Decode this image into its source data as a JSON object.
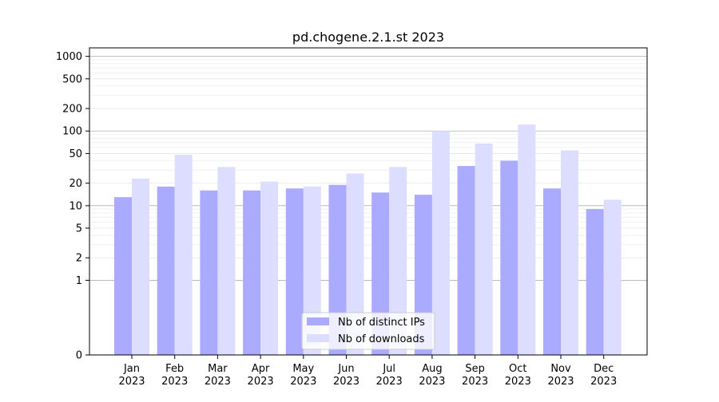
{
  "chart_data": {
    "type": "bar",
    "title": "pd.chogene.2.1.st 2023",
    "xlabel": "",
    "ylabel": "",
    "yscale": "symlog",
    "ylim": [
      0,
      1300
    ],
    "y_ticks": [
      0,
      1,
      2,
      5,
      10,
      20,
      50,
      100,
      200,
      500,
      1000
    ],
    "grid": true,
    "legend_position": "lower-center",
    "categories": [
      "Jan",
      "Feb",
      "Mar",
      "Apr",
      "May",
      "Jun",
      "Jul",
      "Aug",
      "Sep",
      "Oct",
      "Nov",
      "Dec"
    ],
    "category_sublabel": "2023",
    "series": [
      {
        "name": "Nb of distinct IPs",
        "color": "#aaaaff",
        "values": [
          13,
          18,
          16,
          16,
          17,
          19,
          15,
          14,
          34,
          40,
          17,
          9
        ]
      },
      {
        "name": "Nb of downloads",
        "color": "#ddddff",
        "values": [
          23,
          48,
          33,
          21,
          18,
          27,
          33,
          100,
          68,
          122,
          55,
          12
        ]
      }
    ]
  }
}
